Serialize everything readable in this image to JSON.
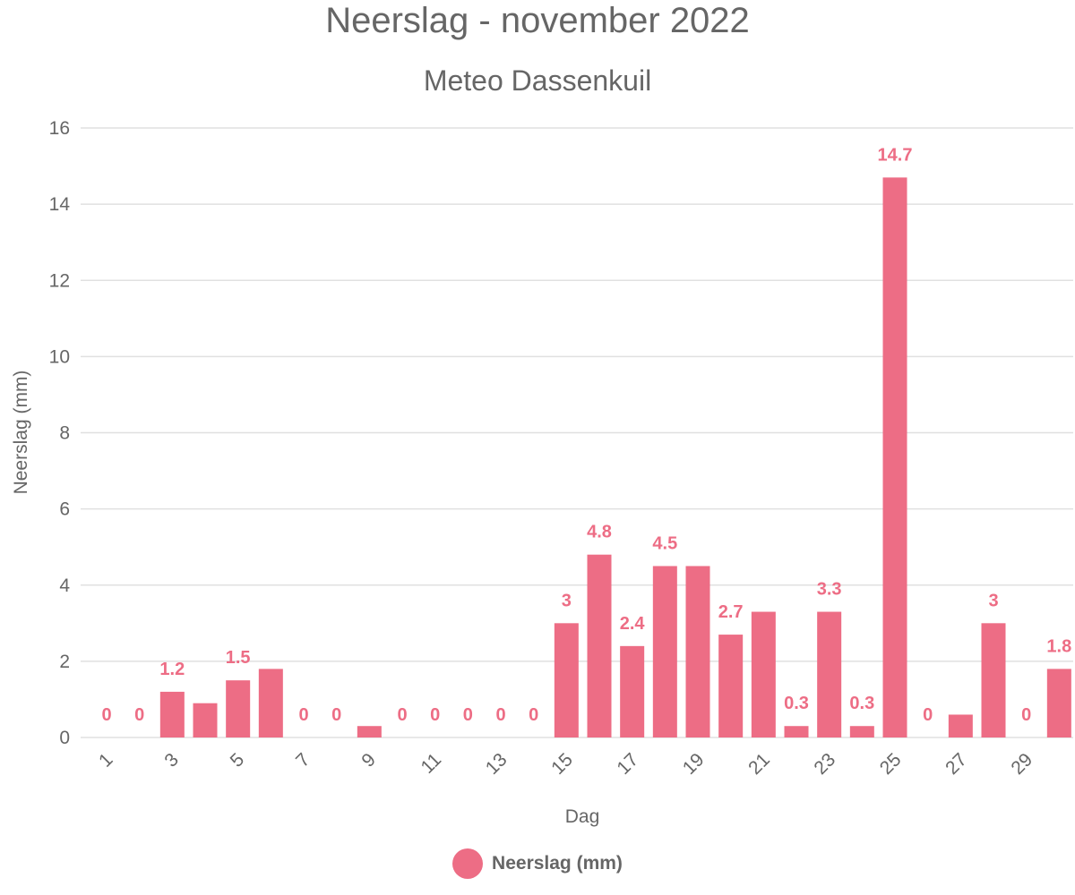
{
  "chart_data": {
    "type": "bar",
    "title": "Neerslag - november 2022",
    "subtitle": "Meteo Dassenkuil",
    "xlabel": "Dag",
    "ylabel": "Neerslag (mm)",
    "ylim": [
      0,
      16
    ],
    "yticks": [
      "0",
      "2",
      "4",
      "6",
      "8",
      "10",
      "12",
      "14",
      "16"
    ],
    "categories": [
      "1",
      "2",
      "3",
      "4",
      "5",
      "6",
      "7",
      "8",
      "9",
      "10",
      "11",
      "12",
      "13",
      "14",
      "15",
      "16",
      "17",
      "18",
      "19",
      "20",
      "21",
      "22",
      "23",
      "24",
      "25",
      "26",
      "27",
      "28",
      "29",
      "30"
    ],
    "xtick_labels": [
      "1",
      "",
      "3",
      "",
      "5",
      "",
      "7",
      "",
      "9",
      "",
      "11",
      "",
      "13",
      "",
      "15",
      "",
      "17",
      "",
      "19",
      "",
      "21",
      "",
      "23",
      "",
      "25",
      "",
      "27",
      "",
      "29",
      ""
    ],
    "series": [
      {
        "name": "Neerslag (mm)",
        "color": "#ed6d85",
        "values": [
          0,
          0,
          1.2,
          0.9,
          1.5,
          1.8,
          0,
          0,
          0.3,
          0,
          0,
          0,
          0,
          0,
          3,
          4.8,
          2.4,
          4.5,
          4.5,
          2.7,
          3.3,
          0.3,
          3.3,
          0.3,
          14.7,
          0,
          0.6,
          3,
          0,
          1.8
        ],
        "data_labels": [
          "0",
          "0",
          "1.2",
          "",
          "1.5",
          "",
          "0",
          "0",
          "",
          "0",
          "0",
          "0",
          "0",
          "0",
          "3",
          "4.8",
          "2.4",
          "4.5",
          "",
          "2.7",
          "",
          "0.3",
          "3.3",
          "0.3",
          "14.7",
          "0",
          "",
          "3",
          "0",
          "1.8"
        ]
      }
    ],
    "grid": true,
    "legend_position": "bottom"
  }
}
